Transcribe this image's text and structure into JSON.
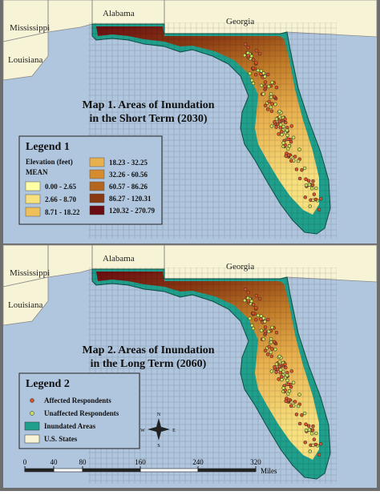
{
  "map1": {
    "states": [
      "Mississippi",
      "Alabama",
      "Georgia",
      "Louisiana"
    ],
    "title": [
      "Map 1. Areas of Inundation",
      "in the Short Term (2030)"
    ],
    "legend": {
      "title": "Legend 1",
      "subtitle": "Elevation (feet)",
      "field": "MEAN",
      "classes": [
        {
          "label": "0.00 - 2.65",
          "color": "#ffffa6"
        },
        {
          "label": "2.66 - 8.70",
          "color": "#f7e07e"
        },
        {
          "label": "8.71 - 18.22",
          "color": "#efc05a"
        },
        {
          "label": "18.23 - 32.25",
          "color": "#e9b04e"
        },
        {
          "label": "32.26 - 60.56",
          "color": "#d58b2e"
        },
        {
          "label": "60.57 - 86.26",
          "color": "#b4661e"
        },
        {
          "label": "86.27 - 120.31",
          "color": "#8a3a12"
        },
        {
          "label": "120.32 - 270.79",
          "color": "#6a0c12"
        }
      ]
    }
  },
  "map2": {
    "states": [
      "Mississippi",
      "Alabama",
      "Georgia",
      "Louisiana"
    ],
    "title": [
      "Map 2. Areas of Inundation",
      "in the Long Term (2060)"
    ],
    "legend": {
      "title": "Legend 2",
      "items": [
        {
          "label": "Affected Respondents",
          "color": "#d9532b"
        },
        {
          "label": "Unaffected Respondents",
          "color": "#c8e05a"
        },
        {
          "label": "Inundated Areas",
          "color": "#1f9f8c"
        },
        {
          "label": "U.S. States",
          "color": "#f7f3d6"
        }
      ]
    }
  },
  "compass": [
    "N",
    "S",
    "E",
    "W"
  ],
  "scale_bar": {
    "ticks": [
      0,
      40,
      80,
      160,
      240,
      320
    ],
    "unit": "Miles"
  }
}
